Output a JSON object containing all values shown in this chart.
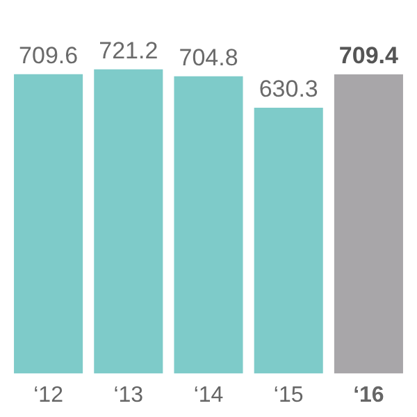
{
  "chart_data": {
    "type": "bar",
    "categories": [
      "‘12",
      "‘13",
      "‘14",
      "‘15",
      "‘16"
    ],
    "values": [
      709.6,
      721.2,
      704.8,
      630.3,
      709.4
    ],
    "colors": [
      "#7ecbc9",
      "#7ecbc9",
      "#7ecbc9",
      "#7ecbc9",
      "#a8a6a9"
    ],
    "data_labels": true,
    "grid": false,
    "legend": false
  }
}
